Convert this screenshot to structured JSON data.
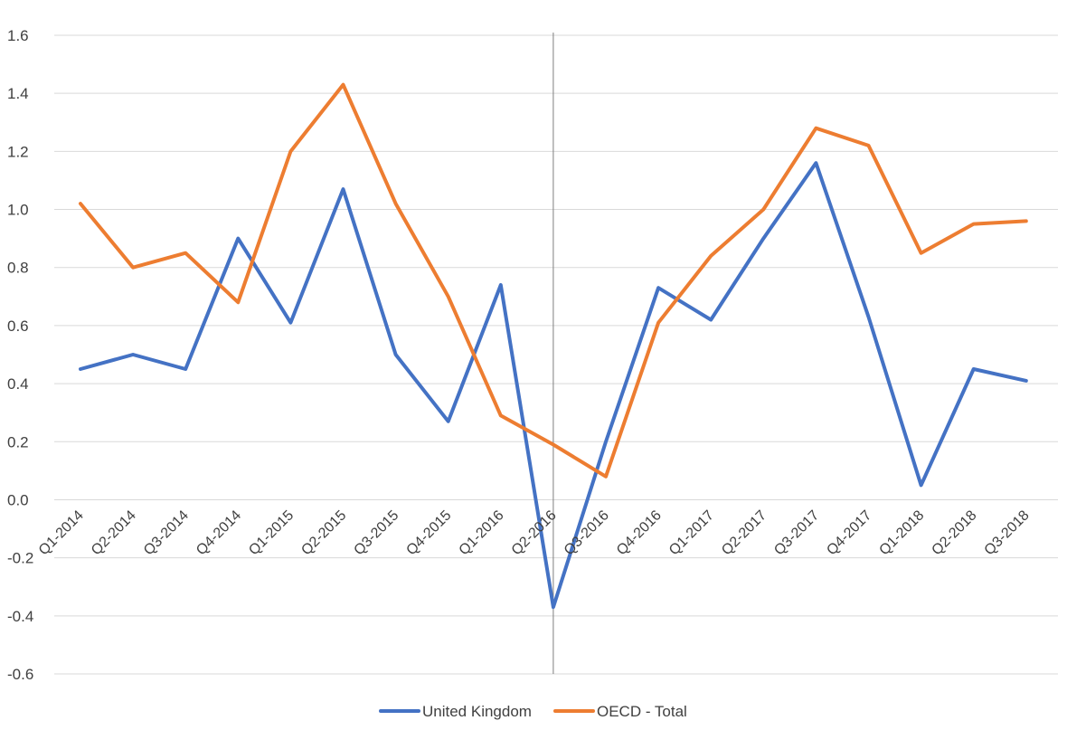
{
  "chart_data": {
    "type": "line",
    "categories": [
      "Q1-2014",
      "Q2-2014",
      "Q3-2014",
      "Q4-2014",
      "Q1-2015",
      "Q2-2015",
      "Q3-2015",
      "Q4-2015",
      "Q1-2016",
      "Q2-2016",
      "Q3-2016",
      "Q4-2016",
      "Q1-2017",
      "Q2-2017",
      "Q3-2017",
      "Q4-2017",
      "Q1-2018",
      "Q2-2018",
      "Q3-2018"
    ],
    "series": [
      {
        "name": "United Kingdom",
        "color": "#4472C4",
        "values": [
          0.45,
          0.5,
          0.45,
          0.9,
          0.61,
          1.07,
          0.5,
          0.27,
          0.74,
          -0.37,
          0.2,
          0.73,
          0.62,
          0.9,
          1.16,
          0.63,
          0.05,
          0.45,
          0.41
        ]
      },
      {
        "name": "OECD - Total",
        "color": "#ED7D31",
        "values": [
          1.02,
          0.8,
          0.85,
          0.68,
          1.2,
          1.43,
          1.02,
          0.7,
          0.29,
          0.19,
          0.08,
          0.61,
          0.84,
          1.0,
          1.28,
          1.22,
          0.85,
          0.95,
          0.96
        ]
      }
    ],
    "yticks": [
      "1.6",
      "1.4",
      "1.2",
      "1.0",
      "0.8",
      "0.6",
      "0.4",
      "0.2",
      "0.0",
      "-0.2",
      "-0.4",
      "-0.6"
    ],
    "ylim": [
      -0.6,
      1.6
    ],
    "grid": true,
    "vertical_marker_category": "Q2-2016",
    "legend_position": "bottom",
    "title": "",
    "xlabel": "",
    "ylabel": ""
  }
}
